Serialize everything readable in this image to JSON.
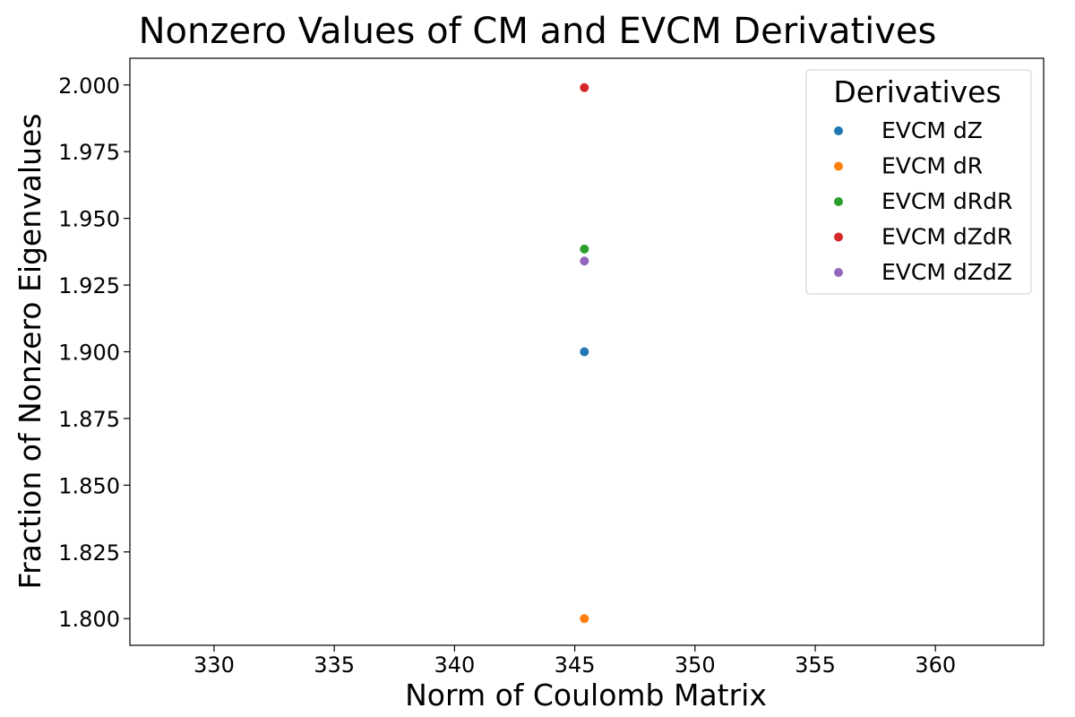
{
  "chart_data": {
    "type": "scatter",
    "title": "Nonzero Values of CM and EVCM Derivatives",
    "xlabel": "Norm of Coulomb Matrix",
    "ylabel": "Fraction of Nonzero Eigenvalues",
    "xlim": [
      326.5,
      364.5
    ],
    "ylim": [
      1.79,
      2.01
    ],
    "xticks": [
      330,
      335,
      340,
      345,
      350,
      355,
      360
    ],
    "xtick_labels": [
      "330",
      "335",
      "340",
      "345",
      "350",
      "355",
      "360"
    ],
    "yticks": [
      1.8,
      1.825,
      1.85,
      1.875,
      1.9,
      1.925,
      1.95,
      1.975,
      2.0
    ],
    "ytick_labels": [
      "1.800",
      "1.825",
      "1.850",
      "1.875",
      "1.900",
      "1.925",
      "1.950",
      "1.975",
      "2.000"
    ],
    "grid": false,
    "legend": {
      "title": "Derivatives",
      "position": "top-right"
    },
    "series": [
      {
        "name": "EVCM dZ",
        "color": "#1f77b4",
        "points": [
          [
            345.4,
            1.9
          ]
        ]
      },
      {
        "name": "EVCM dR",
        "color": "#ff7f0e",
        "points": [
          [
            345.4,
            1.8
          ]
        ]
      },
      {
        "name": "EVCM dRdR",
        "color": "#2ca02c",
        "points": [
          [
            345.4,
            1.9385
          ]
        ]
      },
      {
        "name": "EVCM dZdR",
        "color": "#d62728",
        "points": [
          [
            345.4,
            1.999
          ]
        ]
      },
      {
        "name": "EVCM dZdZ",
        "color": "#9467bd",
        "points": [
          [
            345.4,
            1.934
          ]
        ]
      }
    ]
  }
}
